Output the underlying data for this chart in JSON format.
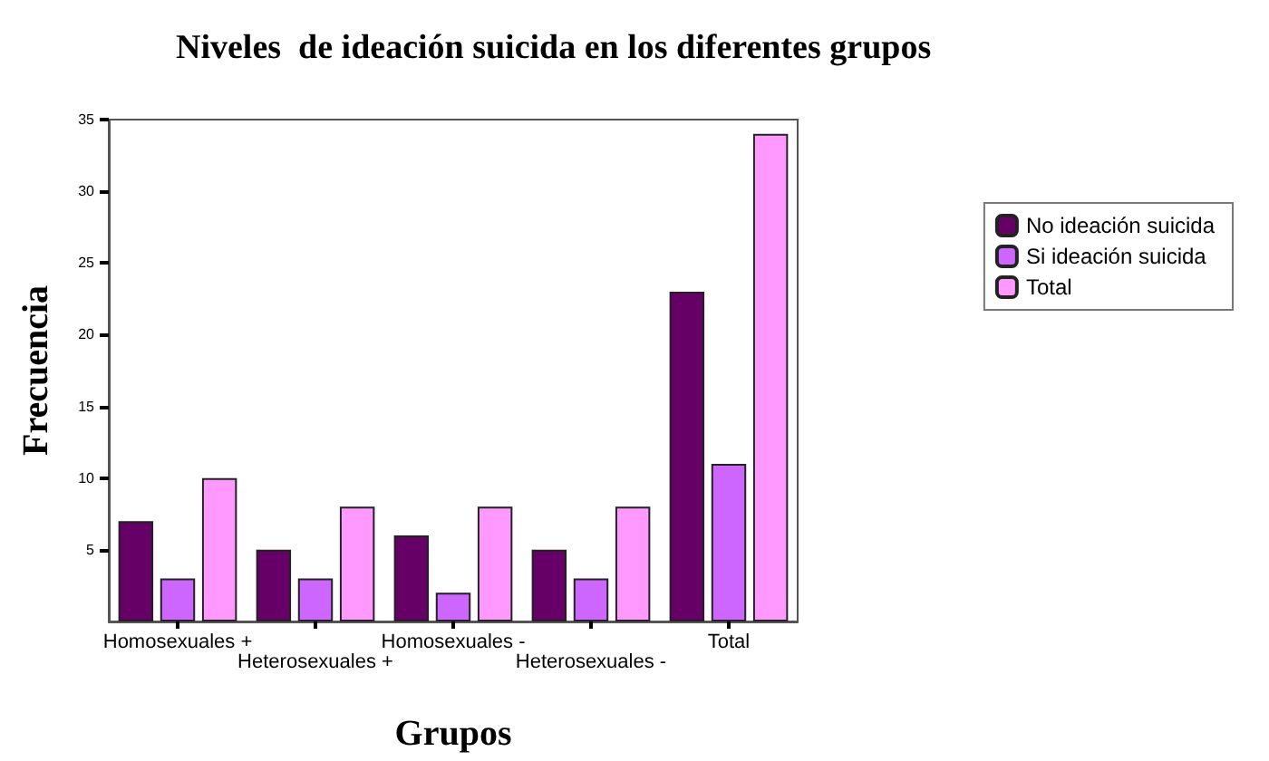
{
  "chart_data": {
    "type": "bar",
    "title": "Niveles  de ideación suicida en los diferentes grupos",
    "xlabel": "Grupos",
    "ylabel": "Frecuencia",
    "categories": [
      "Homosexuales +",
      "Heterosexuales +",
      "Homosexuales -",
      "Heterosexuales -",
      "Total"
    ],
    "series": [
      {
        "name": "No ideación suicida",
        "color": "#660066",
        "values": [
          7,
          5,
          6,
          5,
          23
        ]
      },
      {
        "name": "Si ideación suicida",
        "color": "#cc66ff",
        "values": [
          3,
          3,
          2,
          3,
          11
        ]
      },
      {
        "name": "Total",
        "color": "#ff99ff",
        "values": [
          10,
          8,
          8,
          8,
          34
        ]
      }
    ],
    "ylim": [
      0,
      35
    ],
    "yticks": [
      5,
      10,
      15,
      20,
      25,
      30,
      35
    ],
    "grid": false,
    "legend": "top right"
  }
}
